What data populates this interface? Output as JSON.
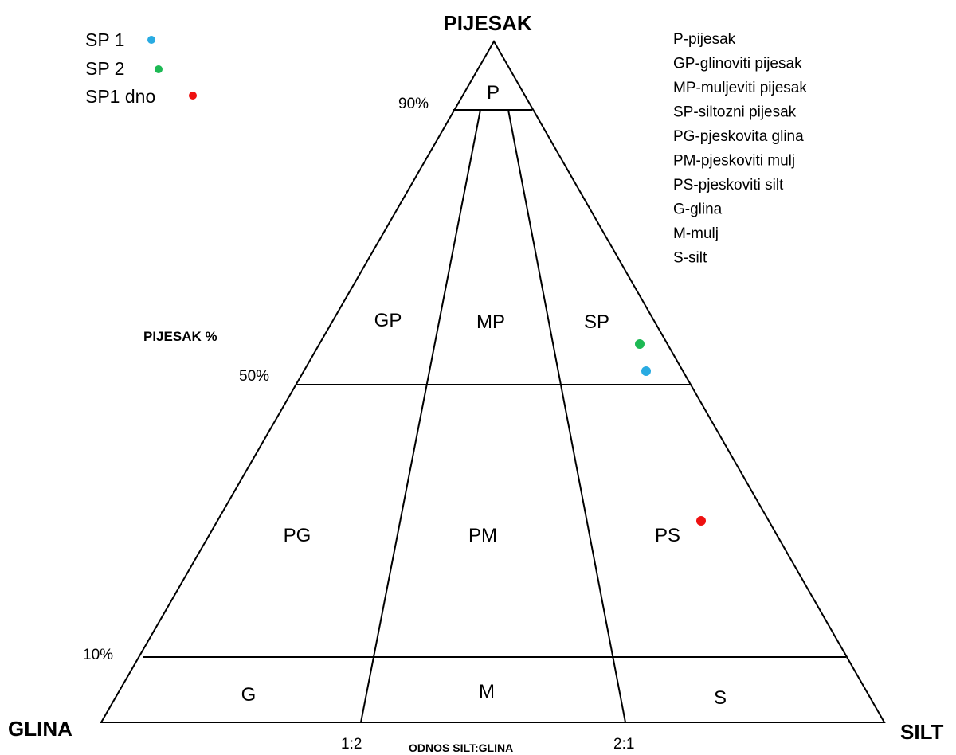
{
  "diagram": {
    "apex_label": "PIJESAK",
    "left_corner_label": "GLINA",
    "right_corner_label": "SILT",
    "side_axis_label": "PIJESAK %",
    "base_axis_label": "ODNOS SILT:GLINA",
    "levels": [
      "90%",
      "50%",
      "10%"
    ],
    "ratios": [
      "1:2",
      "2:1"
    ],
    "zones": [
      "P",
      "GP",
      "MP",
      "SP",
      "PG",
      "PM",
      "PS",
      "G",
      "M",
      "S"
    ],
    "samples": [
      "SP 1",
      "SP 2",
      "SP1 dno"
    ],
    "key": [
      "P-pijesak",
      "GP-glinoviti pijesak",
      "MP-muljeviti pijesak",
      "SP-siltozni pijesak",
      "PG-pjeskovita glina",
      "PM-pjeskoviti mulj",
      "PS-pjeskoviti silt",
      "G-glina",
      "M-mulj",
      "S-silt"
    ]
  }
}
